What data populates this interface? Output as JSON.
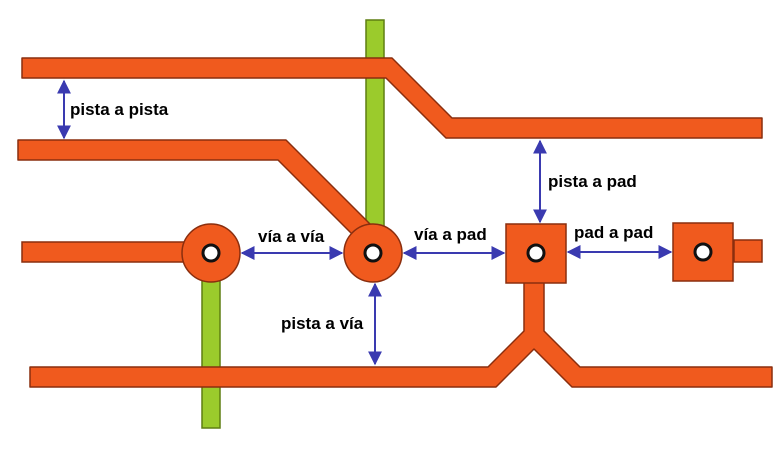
{
  "labels": {
    "pista_a_pista": "pista a pista",
    "pista_a_pad": "pista a pad",
    "via_a_via": "vía a vía",
    "via_a_pad": "vía a pad",
    "pad_a_pad": "pad a pad",
    "pista_a_via": "pista a vía"
  },
  "colors": {
    "trace": "#F05A1E",
    "trace_outline": "#8A2E0E",
    "green_trace": "#9BCB2C",
    "green_outline": "#5E7E12",
    "arrow": "#3A3AB0",
    "hole": "#ffffff"
  },
  "icons": {
    "arrow": "double-headed-arrow"
  }
}
